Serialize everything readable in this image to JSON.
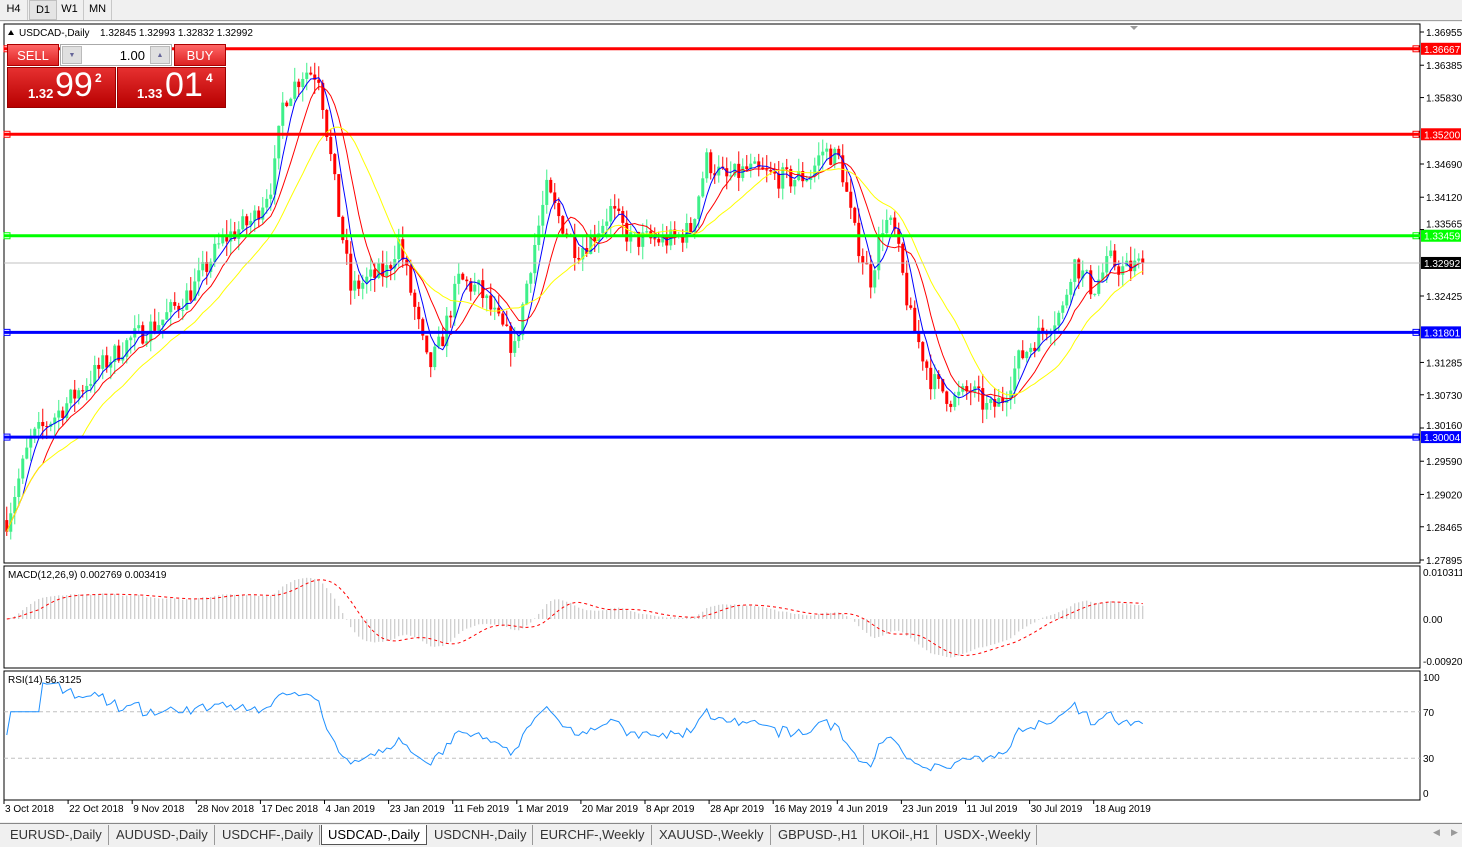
{
  "timeframes": [
    "H4",
    "D1",
    "W1",
    "MN"
  ],
  "active_timeframe": "D1",
  "chart": {
    "symbol_label": "USDCAD-,Daily",
    "ohlc": "1.32845 1.32993 1.32832 1.32992",
    "price_axis": [
      "1.36955",
      "1.36385",
      "1.35830",
      "1.34690",
      "1.34120",
      "1.33565",
      "1.32425",
      "1.31285",
      "1.30730",
      "1.30160",
      "1.29590",
      "1.29020",
      "1.28465",
      "1.27895"
    ],
    "price_range": [
      1.27895,
      1.36955
    ],
    "hlines": [
      {
        "price": 1.36667,
        "label": "1.36667",
        "color": "#ff0000"
      },
      {
        "price": 1.352,
        "label": "1.35200",
        "color": "#ff0000"
      },
      {
        "price": 1.33459,
        "label": "1.33459",
        "color": "#00ff00"
      },
      {
        "price": 1.31801,
        "label": "1.31801",
        "color": "#0000ff"
      },
      {
        "price": 1.30004,
        "label": "1.30004",
        "color": "#0000ff"
      }
    ],
    "current_price": {
      "price": 1.32992,
      "label": "1.32992",
      "color": "#000000"
    },
    "bull_color": "#3ef08a",
    "bear_color": "#ff0000",
    "ma_colors": [
      "#0000ff",
      "#ff0000",
      "#ffff00"
    ],
    "date_axis": [
      "3 Oct 2018",
      "22 Oct 2018",
      "9 Nov 2018",
      "28 Nov 2018",
      "17 Dec 2018",
      "4 Jan 2019",
      "23 Jan 2019",
      "11 Feb 2019",
      "1 Mar 2019",
      "20 Mar 2019",
      "8 Apr 2019",
      "28 Apr 2019",
      "16 May 2019",
      "4 Jun 2019",
      "23 Jun 2019",
      "11 Jul 2019",
      "30 Jul 2019",
      "18 Aug 2019"
    ],
    "date_axis_iso": [
      "2018-10-03",
      "2018-10-22",
      "2018-11-09",
      "2018-11-28",
      "2018-12-17",
      "2019-01-04",
      "2019-01-23",
      "2019-02-11",
      "2019-03-01",
      "2019-03-20",
      "2019-04-08",
      "2019-04-28",
      "2019-05-16",
      "2019-06-04",
      "2019-06-23",
      "2019-07-11",
      "2019-07-30",
      "2019-08-18"
    ],
    "close_path": [
      [
        "2018-09-27",
        1.2858
      ],
      [
        "2018-10-04",
        1.2995
      ],
      [
        "2018-10-13",
        1.3047
      ],
      [
        "2018-10-24",
        1.3116
      ],
      [
        "2018-11-02",
        1.3167
      ],
      [
        "2018-11-11",
        1.3201
      ],
      [
        "2018-11-20",
        1.3253
      ],
      [
        "2018-11-29",
        1.3339
      ],
      [
        "2018-12-08",
        1.3373
      ],
      [
        "2018-12-14",
        1.3442
      ],
      [
        "2018-12-17",
        1.3579
      ],
      [
        "2018-12-23",
        1.363
      ],
      [
        "2018-12-27",
        1.3622
      ],
      [
        "2019-01-01",
        1.3407
      ],
      [
        "2019-01-05",
        1.3253
      ],
      [
        "2019-01-10",
        1.327
      ],
      [
        "2019-01-16",
        1.3287
      ],
      [
        "2019-01-19",
        1.3339
      ],
      [
        "2019-01-22",
        1.327
      ],
      [
        "2019-01-28",
        1.3116
      ],
      [
        "2019-02-01",
        1.3167
      ],
      [
        "2019-02-06",
        1.327
      ],
      [
        "2019-02-12",
        1.3253
      ],
      [
        "2019-02-17",
        1.3201
      ],
      [
        "2019-02-22",
        1.315
      ],
      [
        "2019-02-26",
        1.3287
      ],
      [
        "2019-03-03",
        1.3424
      ],
      [
        "2019-03-07",
        1.3373
      ],
      [
        "2019-03-12",
        1.3321
      ],
      [
        "2019-03-16",
        1.3339
      ],
      [
        "2019-03-22",
        1.339
      ],
      [
        "2019-03-28",
        1.3339
      ],
      [
        "2019-04-03",
        1.3339
      ],
      [
        "2019-04-09",
        1.3339
      ],
      [
        "2019-04-15",
        1.3356
      ],
      [
        "2019-04-20",
        1.3476
      ],
      [
        "2019-04-26",
        1.3442
      ],
      [
        "2019-05-02",
        1.3459
      ],
      [
        "2019-05-08",
        1.345
      ],
      [
        "2019-05-14",
        1.3442
      ],
      [
        "2019-05-20",
        1.345
      ],
      [
        "2019-05-24",
        1.3493
      ],
      [
        "2019-05-29",
        1.3476
      ],
      [
        "2019-06-02",
        1.3356
      ],
      [
        "2019-06-07",
        1.327
      ],
      [
        "2019-06-11",
        1.3373
      ],
      [
        "2019-06-14",
        1.3356
      ],
      [
        "2019-06-19",
        1.3201
      ],
      [
        "2019-06-25",
        1.3098
      ],
      [
        "2019-07-01",
        1.3064
      ],
      [
        "2019-07-06",
        1.3081
      ],
      [
        "2019-07-11",
        1.3047
      ],
      [
        "2019-07-15",
        1.3064
      ],
      [
        "2019-07-20",
        1.3133
      ],
      [
        "2019-07-27",
        1.3184
      ],
      [
        "2019-08-02",
        1.3218
      ],
      [
        "2019-08-05",
        1.3304
      ],
      [
        "2019-08-11",
        1.3253
      ],
      [
        "2019-08-16",
        1.3304
      ],
      [
        "2019-08-20",
        1.3287
      ],
      [
        "2019-08-26",
        1.3299
      ]
    ]
  },
  "trade_panel": {
    "sell_label": "SELL",
    "buy_label": "BUY",
    "lot": "1.00",
    "sell_small": "1.32",
    "sell_big": "99",
    "sell_sup": "2",
    "buy_small": "1.33",
    "buy_big": "01",
    "buy_sup": "4"
  },
  "macd": {
    "label": "MACD(12,26,9) 0.002769 0.003419",
    "axis": [
      "0.010311",
      "0.00",
      "-0.009203"
    ],
    "range": [
      -0.009203,
      0.010311
    ],
    "hist_color": "#c0c0c0",
    "signal_color": "#ff0000"
  },
  "rsi": {
    "label": "RSI(14) 56.3125",
    "axis": [
      "100",
      "70",
      "30",
      "0"
    ],
    "line_color": "#1e90ff"
  },
  "tabs": [
    "EURUSD-,Daily",
    "AUDUSD-,Daily",
    "USDCHF-,Daily",
    "USDCAD-,Daily",
    "USDCNH-,Daily",
    "EURCHF-,Weekly",
    "XAUUSD-,Weekly",
    "GBPUSD-,H1",
    "UKOil-,H1",
    "USDX-,Weekly"
  ],
  "active_tab": "USDCAD-,Daily"
}
